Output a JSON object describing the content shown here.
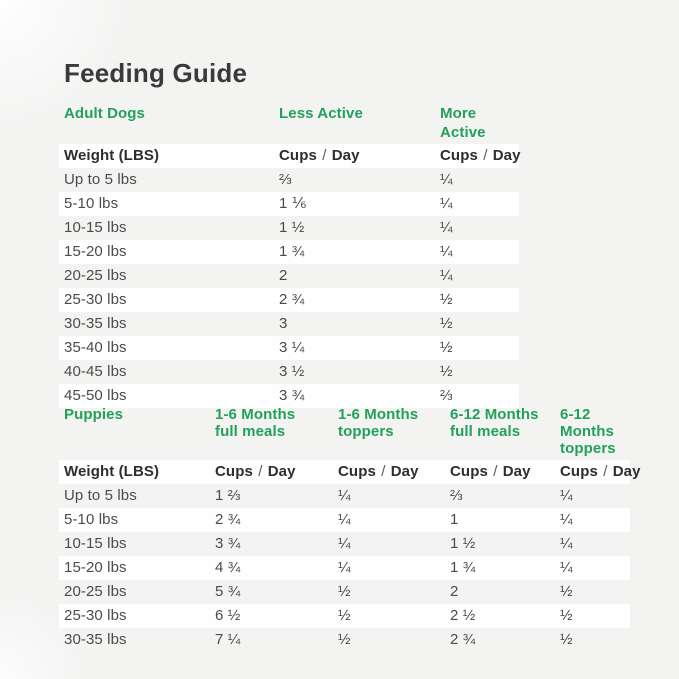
{
  "title": "Feeding Guide",
  "colors": {
    "accent_green": "#23a05a",
    "title_text": "#3a3a3a",
    "row_text": "#4b4b4b",
    "background": "#f3f3f2",
    "row_band": "#fefefe"
  },
  "labels": {
    "weight": "Weight (LBS)",
    "cups": "Cups",
    "slash": "/",
    "day": "Day"
  },
  "adult": {
    "section": "Adult Dogs",
    "columns": [
      "Less Active",
      "More Active"
    ],
    "rows": [
      {
        "weight": "Up to 5 lbs",
        "cells": [
          "⅔",
          "¼"
        ]
      },
      {
        "weight": "5-10 lbs",
        "cells": [
          "1 ⅙",
          "¼"
        ]
      },
      {
        "weight": "10-15 lbs",
        "cells": [
          "1 ½",
          "¼"
        ]
      },
      {
        "weight": "15-20 lbs",
        "cells": [
          "1 ¾",
          "¼"
        ]
      },
      {
        "weight": "20-25 lbs",
        "cells": [
          "2",
          "¼"
        ]
      },
      {
        "weight": "25-30 lbs",
        "cells": [
          "2 ¾",
          "½"
        ]
      },
      {
        "weight": "30-35 lbs",
        "cells": [
          "3",
          "½"
        ]
      },
      {
        "weight": "35-40 lbs",
        "cells": [
          "3 ¼",
          "½"
        ]
      },
      {
        "weight": "40-45 lbs",
        "cells": [
          "3 ½",
          "½"
        ]
      },
      {
        "weight": "45-50 lbs",
        "cells": [
          "3 ¾",
          "⅔"
        ]
      }
    ]
  },
  "puppies": {
    "section": "Puppies",
    "columns": [
      {
        "l1": "1-6 Months",
        "l2": "full meals"
      },
      {
        "l1": "1-6 Months",
        "l2": "toppers"
      },
      {
        "l1": "6-12 Months",
        "l2": "full meals"
      },
      {
        "l1": "6-12 Months",
        "l2": "toppers"
      }
    ],
    "rows": [
      {
        "weight": "Up to 5 lbs",
        "cells": [
          "1 ⅔",
          "¼",
          "⅔",
          "¼"
        ]
      },
      {
        "weight": "5-10 lbs",
        "cells": [
          "2 ¾",
          "¼",
          "1",
          "¼"
        ]
      },
      {
        "weight": "10-15 lbs",
        "cells": [
          "3 ¾",
          "¼",
          "1 ½",
          "¼"
        ]
      },
      {
        "weight": "15-20 lbs",
        "cells": [
          "4 ¾",
          "¼",
          "1 ¾",
          "¼"
        ]
      },
      {
        "weight": "20-25 lbs",
        "cells": [
          "5 ¾",
          "½",
          "2",
          "½"
        ]
      },
      {
        "weight": "25-30 lbs",
        "cells": [
          "6 ½",
          "½",
          "2 ½",
          "½"
        ]
      },
      {
        "weight": "30-35 lbs",
        "cells": [
          "7 ¼",
          "½",
          "2 ¾",
          "½"
        ]
      }
    ]
  },
  "chart_data": [
    {
      "type": "table",
      "title": "Adult Dogs",
      "columns": [
        "Weight (LBS)",
        "Less Active Cups / Day",
        "More Active Cups / Day"
      ],
      "rows": [
        [
          "Up to 5 lbs",
          "2/3",
          "1/4"
        ],
        [
          "5-10 lbs",
          "1 1/6",
          "1/4"
        ],
        [
          "10-15 lbs",
          "1 1/2",
          "1/4"
        ],
        [
          "15-20 lbs",
          "1 3/4",
          "1/4"
        ],
        [
          "20-25 lbs",
          "2",
          "1/4"
        ],
        [
          "25-30 lbs",
          "2 3/4",
          "1/2"
        ],
        [
          "30-35 lbs",
          "3",
          "1/2"
        ],
        [
          "35-40 lbs",
          "3 1/4",
          "1/2"
        ],
        [
          "40-45 lbs",
          "3 1/2",
          "1/2"
        ],
        [
          "45-50 lbs",
          "3 3/4",
          "2/3"
        ]
      ]
    },
    {
      "type": "table",
      "title": "Puppies",
      "columns": [
        "Weight (LBS)",
        "1-6 Months full meals Cups / Day",
        "1-6 Months toppers Cups / Day",
        "6-12 Months full meals Cups / Day",
        "6-12 Months toppers Cups / Day"
      ],
      "rows": [
        [
          "Up to 5 lbs",
          "1 2/3",
          "1/4",
          "2/3",
          "1/4"
        ],
        [
          "5-10 lbs",
          "2 3/4",
          "1/4",
          "1",
          "1/4"
        ],
        [
          "10-15 lbs",
          "3 3/4",
          "1/4",
          "1 1/2",
          "1/4"
        ],
        [
          "15-20 lbs",
          "4 3/4",
          "1/4",
          "1 3/4",
          "1/4"
        ],
        [
          "20-25 lbs",
          "5 3/4",
          "1/2",
          "2",
          "1/2"
        ],
        [
          "25-30 lbs",
          "6 1/2",
          "1/2",
          "2 1/2",
          "1/2"
        ],
        [
          "30-35 lbs",
          "7 1/4",
          "1/2",
          "2 3/4",
          "1/2"
        ]
      ]
    }
  ]
}
